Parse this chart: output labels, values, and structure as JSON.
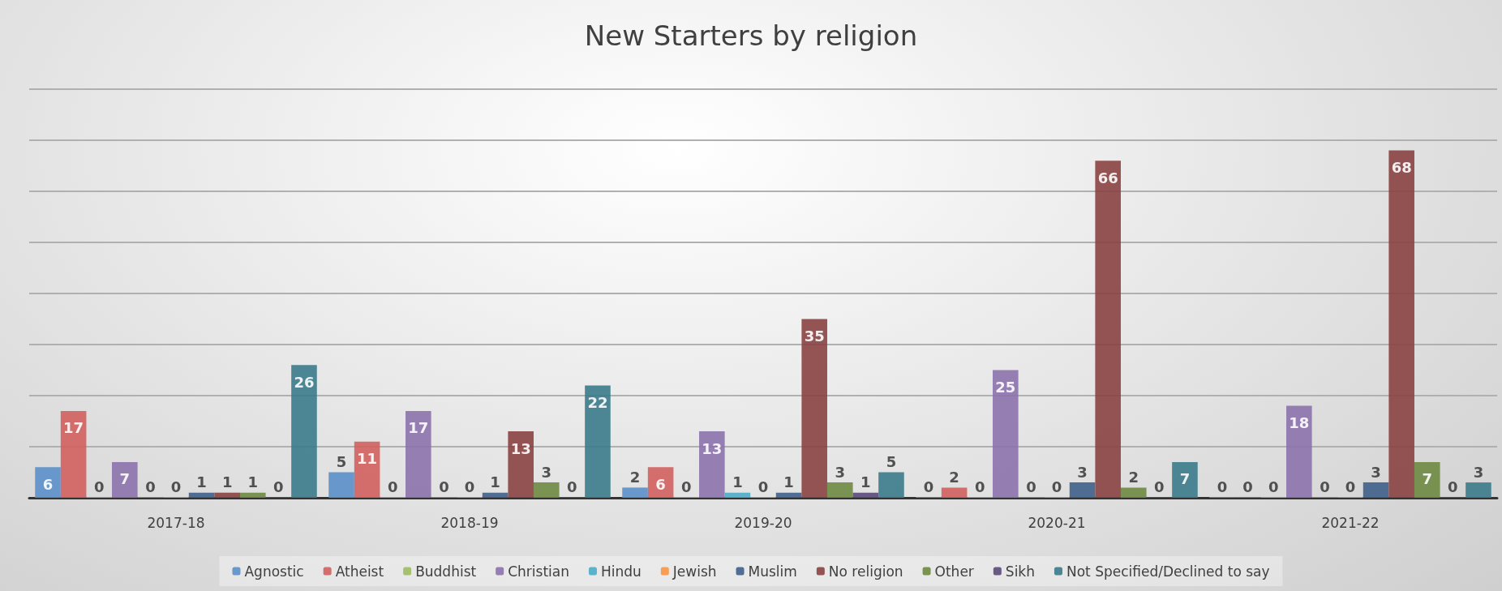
{
  "chart_data": {
    "type": "bar",
    "title": "New Starters by religion",
    "categories": [
      "2017-18",
      "2018-19",
      "2019-20",
      "2020-21",
      "2021-22"
    ],
    "series": [
      {
        "name": "Agnostic",
        "color": "#5b8fc9",
        "values": [
          6,
          5,
          2,
          0,
          0
        ]
      },
      {
        "name": "Atheist",
        "color": "#d0605e",
        "values": [
          17,
          11,
          6,
          2,
          0
        ]
      },
      {
        "name": "Buddhist",
        "color": "#9dbb61",
        "values": [
          0,
          0,
          0,
          0,
          0
        ]
      },
      {
        "name": "Christian",
        "color": "#8c72ac",
        "values": [
          7,
          17,
          13,
          25,
          18
        ]
      },
      {
        "name": "Hindu",
        "color": "#4bacc6",
        "values": [
          0,
          0,
          1,
          0,
          0
        ]
      },
      {
        "name": "Jewish",
        "color": "#f79646",
        "values": [
          0,
          0,
          0,
          0,
          0
        ]
      },
      {
        "name": "Muslim",
        "color": "#3f5f8a",
        "values": [
          1,
          1,
          1,
          3,
          3
        ]
      },
      {
        "name": "No religion",
        "color": "#8b4343",
        "values": [
          1,
          13,
          35,
          66,
          68
        ]
      },
      {
        "name": "Other",
        "color": "#6e8a42",
        "values": [
          1,
          3,
          3,
          2,
          7
        ]
      },
      {
        "name": "Sikh",
        "color": "#5a4a7a",
        "values": [
          0,
          0,
          1,
          0,
          0
        ]
      },
      {
        "name": "Not Specified/Declined to say",
        "color": "#3b7b8b",
        "values": [
          26,
          22,
          5,
          7,
          3
        ]
      }
    ],
    "ylim": [
      0,
      80
    ],
    "yticks": [
      {
        "value": 0,
        "label": null
      },
      {
        "value": 10,
        "label": null
      },
      {
        "value": 20,
        "label": null
      },
      {
        "value": 30,
        "label": null
      },
      {
        "value": 40,
        "label": null
      },
      {
        "value": 50,
        "label": null
      },
      {
        "value": 60,
        "label": null
      },
      {
        "value": 70,
        "label": null
      },
      {
        "value": 80,
        "label": null
      }
    ],
    "tick_labels": "x",
    "grid": "y",
    "legend": "bottom",
    "data_labels": true
  }
}
